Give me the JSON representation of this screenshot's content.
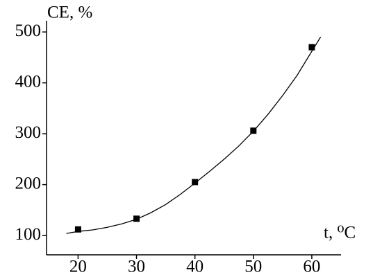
{
  "chart_data": {
    "type": "scatter",
    "y_label": "CE, %",
    "x_label": "t, ⁰C",
    "x": [
      20,
      30,
      40,
      50,
      60
    ],
    "values": [
      112,
      133,
      205,
      306,
      470
    ],
    "color": "#000000",
    "fit": {
      "x": [
        18,
        20,
        22.5,
        25,
        27.5,
        30,
        32.5,
        35,
        37.5,
        40,
        42.5,
        45,
        47.5,
        50,
        52.5,
        55,
        57.5,
        60,
        61.5
      ],
      "values": [
        104,
        108,
        111,
        116,
        123,
        132,
        145,
        161,
        181,
        203,
        226,
        250,
        276,
        305,
        338,
        375,
        415,
        462,
        490
      ]
    },
    "xlim": [
      14.6,
      65
    ],
    "ylim": [
      62,
      522
    ],
    "xticks": [
      20,
      30,
      40,
      50,
      60
    ],
    "yticks": [
      100,
      200,
      300,
      400,
      500
    ]
  }
}
